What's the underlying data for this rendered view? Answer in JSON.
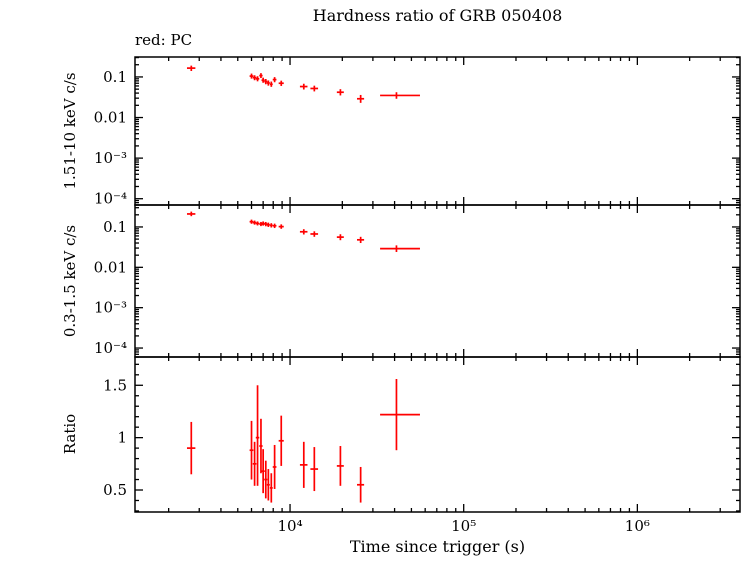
{
  "chart_data": {
    "type": "scatter",
    "title": "Hardness ratio of GRB 050408",
    "legend": "red: PC",
    "legend_position": "top-left",
    "xlabel": "Time since trigger (s)",
    "xscale": "log",
    "xlim": [
      1280,
      3900000
    ],
    "grid": false,
    "series_color": "#ff0000",
    "axis_color": "#000000",
    "xticks": [
      {
        "value": 10000,
        "label": "10⁴"
      },
      {
        "value": 100000,
        "label": "10⁵"
      },
      {
        "value": 1000000,
        "label": "10⁶"
      }
    ],
    "panels": [
      {
        "name": "hard-band",
        "ylabel": "1.51-10 keV c/s",
        "yscale": "log",
        "ylim": [
          7e-05,
          0.31
        ],
        "yticks": [
          {
            "value": 0.1,
            "label": "0.1"
          },
          {
            "value": 0.01,
            "label": "0.01"
          },
          {
            "value": 0.001,
            "label": "10⁻³"
          },
          {
            "value": 0.0001,
            "label": "10⁻⁴"
          }
        ],
        "points": [
          {
            "x": 2700,
            "xlo": 2550,
            "xhi": 2850,
            "y": 0.165,
            "ylo": 0.14,
            "yhi": 0.19
          },
          {
            "x": 6000,
            "xlo": 5850,
            "xhi": 6150,
            "y": 0.105,
            "ylo": 0.091,
            "yhi": 0.121
          },
          {
            "x": 6250,
            "xlo": 6100,
            "xhi": 6400,
            "y": 0.096,
            "ylo": 0.083,
            "yhi": 0.11
          },
          {
            "x": 6500,
            "xlo": 6350,
            "xhi": 6650,
            "y": 0.09,
            "ylo": 0.078,
            "yhi": 0.104
          },
          {
            "x": 6800,
            "xlo": 6650,
            "xhi": 6950,
            "y": 0.108,
            "ylo": 0.094,
            "yhi": 0.124
          },
          {
            "x": 7000,
            "xlo": 6850,
            "xhi": 7150,
            "y": 0.083,
            "ylo": 0.072,
            "yhi": 0.096
          },
          {
            "x": 7250,
            "xlo": 7100,
            "xhi": 7400,
            "y": 0.077,
            "ylo": 0.066,
            "yhi": 0.089
          },
          {
            "x": 7500,
            "xlo": 7350,
            "xhi": 7650,
            "y": 0.071,
            "ylo": 0.061,
            "yhi": 0.082
          },
          {
            "x": 7800,
            "xlo": 7650,
            "xhi": 7950,
            "y": 0.066,
            "ylo": 0.057,
            "yhi": 0.077
          },
          {
            "x": 8150,
            "xlo": 7950,
            "xhi": 8350,
            "y": 0.086,
            "ylo": 0.074,
            "yhi": 0.099
          },
          {
            "x": 8900,
            "xlo": 8600,
            "xhi": 9200,
            "y": 0.07,
            "ylo": 0.06,
            "yhi": 0.081
          },
          {
            "x": 12000,
            "xlo": 11400,
            "xhi": 12600,
            "y": 0.058,
            "ylo": 0.049,
            "yhi": 0.068
          },
          {
            "x": 13800,
            "xlo": 13100,
            "xhi": 14500,
            "y": 0.052,
            "ylo": 0.044,
            "yhi": 0.061
          },
          {
            "x": 19500,
            "xlo": 18600,
            "xhi": 20400,
            "y": 0.042,
            "ylo": 0.035,
            "yhi": 0.05
          },
          {
            "x": 25500,
            "xlo": 24300,
            "xhi": 26700,
            "y": 0.029,
            "ylo": 0.023,
            "yhi": 0.036
          },
          {
            "x": 41000,
            "xlo": 33000,
            "xhi": 56000,
            "y": 0.035,
            "ylo": 0.029,
            "yhi": 0.042
          }
        ]
      },
      {
        "name": "soft-band",
        "ylabel": "0.3-1.5 keV c/s",
        "yscale": "log",
        "ylim": [
          6e-05,
          0.35
        ],
        "yticks": [
          {
            "value": 0.1,
            "label": "0.1"
          },
          {
            "value": 0.01,
            "label": "0.01"
          },
          {
            "value": 0.001,
            "label": "10⁻³"
          },
          {
            "value": 0.0001,
            "label": "10⁻⁴"
          }
        ],
        "points": [
          {
            "x": 2700,
            "xlo": 2550,
            "xhi": 2850,
            "y": 0.21,
            "ylo": 0.185,
            "yhi": 0.24
          },
          {
            "x": 6000,
            "xlo": 5850,
            "xhi": 6150,
            "y": 0.135,
            "ylo": 0.12,
            "yhi": 0.152
          },
          {
            "x": 6250,
            "xlo": 6100,
            "xhi": 6400,
            "y": 0.128,
            "ylo": 0.114,
            "yhi": 0.144
          },
          {
            "x": 6500,
            "xlo": 6350,
            "xhi": 6650,
            "y": 0.122,
            "ylo": 0.109,
            "yhi": 0.137
          },
          {
            "x": 6800,
            "xlo": 6650,
            "xhi": 6950,
            "y": 0.118,
            "ylo": 0.105,
            "yhi": 0.133
          },
          {
            "x": 7000,
            "xlo": 6850,
            "xhi": 7150,
            "y": 0.122,
            "ylo": 0.108,
            "yhi": 0.137
          },
          {
            "x": 7250,
            "xlo": 7100,
            "xhi": 7400,
            "y": 0.118,
            "ylo": 0.104,
            "yhi": 0.133
          },
          {
            "x": 7500,
            "xlo": 7350,
            "xhi": 7650,
            "y": 0.113,
            "ylo": 0.1,
            "yhi": 0.128
          },
          {
            "x": 7800,
            "xlo": 7650,
            "xhi": 7950,
            "y": 0.11,
            "ylo": 0.097,
            "yhi": 0.124
          },
          {
            "x": 8150,
            "xlo": 7950,
            "xhi": 8350,
            "y": 0.107,
            "ylo": 0.094,
            "yhi": 0.121
          },
          {
            "x": 8900,
            "xlo": 8600,
            "xhi": 9200,
            "y": 0.102,
            "ylo": 0.09,
            "yhi": 0.116
          },
          {
            "x": 12000,
            "xlo": 11400,
            "xhi": 12600,
            "y": 0.076,
            "ylo": 0.065,
            "yhi": 0.088
          },
          {
            "x": 13800,
            "xlo": 13100,
            "xhi": 14500,
            "y": 0.067,
            "ylo": 0.057,
            "yhi": 0.078
          },
          {
            "x": 19500,
            "xlo": 18600,
            "xhi": 20400,
            "y": 0.056,
            "ylo": 0.047,
            "yhi": 0.066
          },
          {
            "x": 25500,
            "xlo": 24300,
            "xhi": 26700,
            "y": 0.048,
            "ylo": 0.04,
            "yhi": 0.057
          },
          {
            "x": 41000,
            "xlo": 33000,
            "xhi": 56000,
            "y": 0.029,
            "ylo": 0.024,
            "yhi": 0.035
          }
        ]
      },
      {
        "name": "ratio",
        "ylabel": "Ratio",
        "yscale": "linear",
        "ylim": [
          0.29,
          1.77
        ],
        "yticks": [
          {
            "value": 1.5,
            "label": "1.5"
          },
          {
            "value": 1,
            "label": "1"
          },
          {
            "value": 0.5,
            "label": "0.5"
          }
        ],
        "points": [
          {
            "x": 2700,
            "xlo": 2550,
            "xhi": 2850,
            "y": 0.9,
            "ylo": 0.65,
            "yhi": 1.15
          },
          {
            "x": 6000,
            "xlo": 5850,
            "xhi": 6150,
            "y": 0.88,
            "ylo": 0.6,
            "yhi": 1.16
          },
          {
            "x": 6250,
            "xlo": 6100,
            "xhi": 6400,
            "y": 0.75,
            "ylo": 0.54,
            "yhi": 0.96
          },
          {
            "x": 6500,
            "xlo": 6350,
            "xhi": 6650,
            "y": 1.0,
            "ylo": 0.54,
            "yhi": 1.5
          },
          {
            "x": 6800,
            "xlo": 6650,
            "xhi": 6950,
            "y": 0.92,
            "ylo": 0.66,
            "yhi": 1.18
          },
          {
            "x": 7000,
            "xlo": 6850,
            "xhi": 7150,
            "y": 0.68,
            "ylo": 0.47,
            "yhi": 0.89
          },
          {
            "x": 7250,
            "xlo": 7100,
            "xhi": 7400,
            "y": 0.6,
            "ylo": 0.42,
            "yhi": 0.78
          },
          {
            "x": 7500,
            "xlo": 7350,
            "xhi": 7650,
            "y": 0.55,
            "ylo": 0.4,
            "yhi": 0.7
          },
          {
            "x": 7800,
            "xlo": 7650,
            "xhi": 7950,
            "y": 0.52,
            "ylo": 0.38,
            "yhi": 0.66
          },
          {
            "x": 8150,
            "xlo": 7950,
            "xhi": 8350,
            "y": 0.72,
            "ylo": 0.51,
            "yhi": 0.93
          },
          {
            "x": 8900,
            "xlo": 8600,
            "xhi": 9200,
            "y": 0.97,
            "ylo": 0.73,
            "yhi": 1.21
          },
          {
            "x": 12000,
            "xlo": 11400,
            "xhi": 12600,
            "y": 0.74,
            "ylo": 0.52,
            "yhi": 0.96
          },
          {
            "x": 13800,
            "xlo": 13100,
            "xhi": 14500,
            "y": 0.7,
            "ylo": 0.49,
            "yhi": 0.91
          },
          {
            "x": 19500,
            "xlo": 18600,
            "xhi": 20400,
            "y": 0.73,
            "ylo": 0.54,
            "yhi": 0.92
          },
          {
            "x": 25500,
            "xlo": 24300,
            "xhi": 26700,
            "y": 0.55,
            "ylo": 0.38,
            "yhi": 0.72
          },
          {
            "x": 41000,
            "xlo": 33000,
            "xhi": 56000,
            "y": 1.22,
            "ylo": 0.88,
            "yhi": 1.56
          }
        ]
      }
    ]
  }
}
